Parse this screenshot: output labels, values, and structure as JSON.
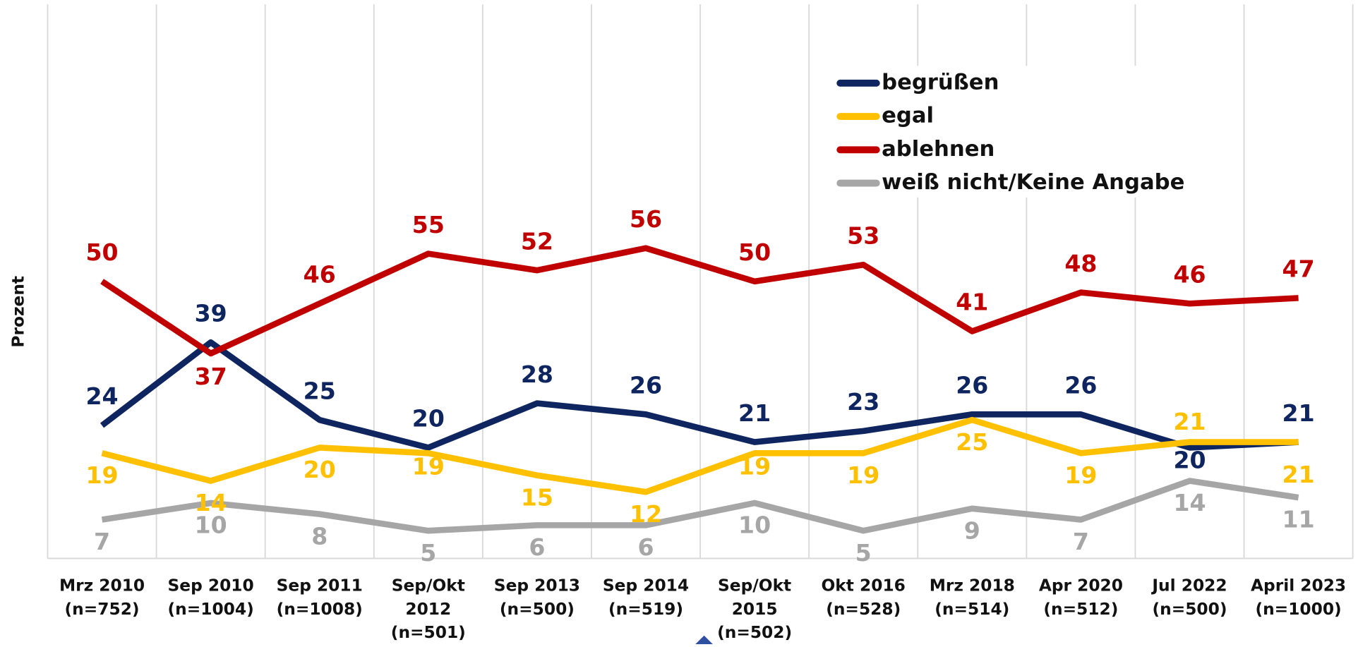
{
  "chart_data": {
    "type": "line",
    "y_label": "Prozent",
    "categories": [
      [
        "Mrz 2010",
        "(n=752)"
      ],
      [
        "Sep 2010",
        "(n=1004)"
      ],
      [
        "Sep 2011",
        "(n=1008)"
      ],
      [
        "Sep/Okt",
        "2012",
        "(n=501)"
      ],
      [
        "Sep 2013",
        "(n=500)"
      ],
      [
        "Sep 2014",
        "(n=519)"
      ],
      [
        "Sep/Okt",
        "2015",
        "(n=502)"
      ],
      [
        "Okt 2016",
        "(n=528)"
      ],
      [
        "Mrz 2018",
        "(n=514)"
      ],
      [
        "Apr 2020",
        "(n=512)"
      ],
      [
        "Jul 2022",
        "(n=500)"
      ],
      [
        "April 2023",
        "(n=1000)"
      ]
    ],
    "series": [
      {
        "name": "begrüßen",
        "color": "#0e2560",
        "values": [
          24,
          39,
          25,
          20,
          28,
          26,
          21,
          23,
          26,
          26,
          20,
          21
        ]
      },
      {
        "name": "egal",
        "color": "#ffc000",
        "values": [
          19,
          14,
          20,
          19,
          15,
          12,
          19,
          19,
          25,
          19,
          21,
          21
        ]
      },
      {
        "name": "ablehnen",
        "color": "#c00000",
        "values": [
          50,
          37,
          46,
          55,
          52,
          56,
          50,
          53,
          41,
          48,
          46,
          47
        ]
      },
      {
        "name": "weiß nicht/Keine Angabe",
        "color": "#a6a6a6",
        "values": [
          7,
          10,
          8,
          5,
          6,
          6,
          10,
          5,
          9,
          7,
          14,
          11
        ]
      }
    ],
    "ylim": [
      0,
      100
    ],
    "grid": true,
    "legend": "top-right"
  }
}
